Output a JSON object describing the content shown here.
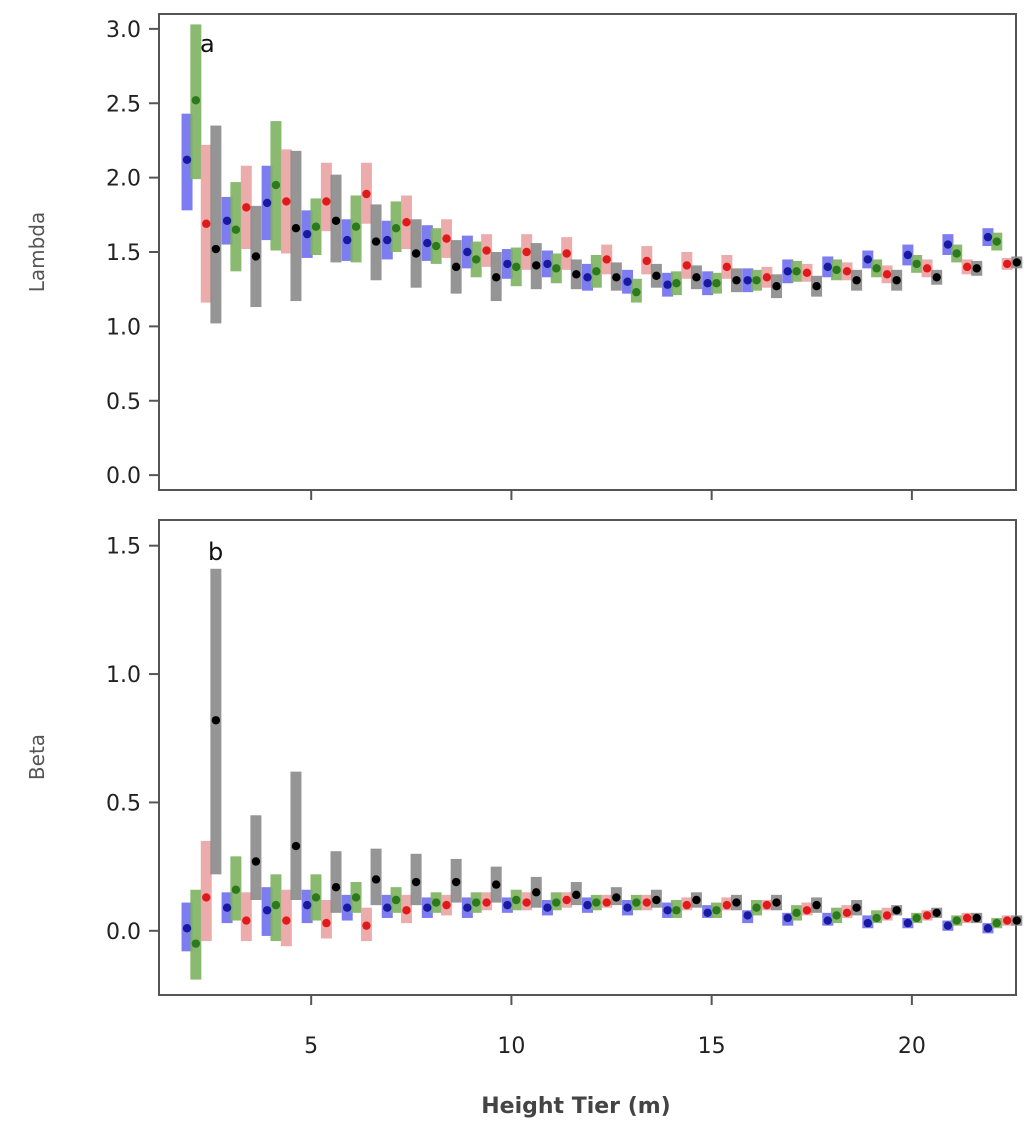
{
  "chart_data": {
    "type": "scatter",
    "xlabel": "Height Tier (m)",
    "x_ticks": [
      5,
      10,
      15,
      20
    ],
    "xlim": [
      1.2,
      22.6
    ],
    "series_colors": {
      "blue": {
        "bar": "#6f6ff0",
        "dot": "#1a1aa0"
      },
      "green": {
        "bar": "#7cb35f",
        "dot": "#2d7a1c"
      },
      "red": {
        "bar": "#eba3a3",
        "dot": "#e01a1a"
      },
      "black": {
        "bar": "#8a8a8a",
        "dot": "#000000"
      }
    },
    "series_offsets": {
      "blue": -0.1,
      "green": 0.12,
      "red": 0.38,
      "black": 0.62
    },
    "panels": [
      {
        "letter": "a",
        "ylabel": "Lambda",
        "ylim": [
          -0.1,
          3.1
        ],
        "y_ticks": [
          "0.0",
          "0.5",
          "1.0",
          "1.5",
          "2.0",
          "2.5",
          "3.0"
        ],
        "tiers": [
          2,
          3,
          4,
          5,
          6,
          7,
          8,
          9,
          10,
          11,
          12,
          13,
          14,
          15,
          16,
          17,
          18,
          19,
          20,
          21,
          22
        ],
        "series": {
          "blue": {
            "mid": [
              2.12,
              1.71,
              1.83,
              1.62,
              1.58,
              1.58,
              1.56,
              1.5,
              1.42,
              1.42,
              1.33,
              1.3,
              1.28,
              1.29,
              1.31,
              1.37,
              1.4,
              1.45,
              1.48,
              1.55,
              1.6
            ],
            "lo": [
              1.78,
              1.55,
              1.58,
              1.46,
              1.44,
              1.45,
              1.44,
              1.39,
              1.32,
              1.33,
              1.24,
              1.22,
              1.2,
              1.21,
              1.23,
              1.29,
              1.33,
              1.39,
              1.41,
              1.48,
              1.54
            ],
            "hi": [
              2.43,
              1.87,
              2.08,
              1.78,
              1.72,
              1.71,
              1.68,
              1.61,
              1.52,
              1.51,
              1.42,
              1.38,
              1.36,
              1.37,
              1.39,
              1.45,
              1.47,
              1.51,
              1.55,
              1.62,
              1.66
            ]
          },
          "green": {
            "mid": [
              2.52,
              1.65,
              1.95,
              1.67,
              1.67,
              1.66,
              1.54,
              1.45,
              1.4,
              1.39,
              1.37,
              1.23,
              1.29,
              1.29,
              1.31,
              1.37,
              1.38,
              1.39,
              1.42,
              1.49,
              1.57
            ],
            "lo": [
              1.99,
              1.37,
              1.51,
              1.48,
              1.43,
              1.5,
              1.42,
              1.33,
              1.27,
              1.29,
              1.26,
              1.16,
              1.21,
              1.22,
              1.24,
              1.3,
              1.31,
              1.33,
              1.36,
              1.43,
              1.51
            ],
            "hi": [
              3.03,
              1.97,
              2.38,
              1.86,
              1.88,
              1.84,
              1.66,
              1.57,
              1.53,
              1.49,
              1.48,
              1.32,
              1.37,
              1.36,
              1.38,
              1.44,
              1.45,
              1.45,
              1.48,
              1.55,
              1.63
            ]
          },
          "red": {
            "mid": [
              1.69,
              1.8,
              1.84,
              1.84,
              1.89,
              1.7,
              1.59,
              1.51,
              1.5,
              1.49,
              1.45,
              1.44,
              1.41,
              1.4,
              1.33,
              1.36,
              1.37,
              1.35,
              1.39,
              1.4,
              1.42
            ],
            "lo": [
              1.16,
              1.52,
              1.49,
              1.64,
              1.69,
              1.52,
              1.46,
              1.4,
              1.38,
              1.38,
              1.35,
              1.35,
              1.32,
              1.32,
              1.26,
              1.3,
              1.31,
              1.29,
              1.33,
              1.35,
              1.38
            ],
            "hi": [
              2.22,
              2.08,
              2.19,
              2.1,
              2.1,
              1.88,
              1.72,
              1.62,
              1.62,
              1.6,
              1.55,
              1.54,
              1.5,
              1.48,
              1.4,
              1.42,
              1.43,
              1.41,
              1.45,
              1.45,
              1.46
            ]
          },
          "black": {
            "mid": [
              1.52,
              1.47,
              1.66,
              1.71,
              1.57,
              1.49,
              1.4,
              1.33,
              1.41,
              1.35,
              1.33,
              1.34,
              1.33,
              1.31,
              1.27,
              1.27,
              1.31,
              1.31,
              1.33,
              1.39,
              1.43
            ],
            "lo": [
              1.02,
              1.13,
              1.17,
              1.43,
              1.31,
              1.26,
              1.22,
              1.17,
              1.25,
              1.25,
              1.24,
              1.26,
              1.25,
              1.23,
              1.19,
              1.2,
              1.24,
              1.24,
              1.28,
              1.34,
              1.39
            ],
            "hi": [
              2.35,
              1.81,
              2.18,
              2.02,
              1.82,
              1.72,
              1.58,
              1.5,
              1.56,
              1.45,
              1.43,
              1.42,
              1.41,
              1.39,
              1.35,
              1.34,
              1.38,
              1.38,
              1.38,
              1.44,
              1.47
            ]
          }
        }
      },
      {
        "letter": "b",
        "ylabel": "Beta",
        "ylim": [
          -0.25,
          1.6
        ],
        "y_ticks": [
          "0.0",
          "0.5",
          "1.0",
          "1.5"
        ],
        "tiers": [
          2,
          3,
          4,
          5,
          6,
          7,
          8,
          9,
          10,
          11,
          12,
          13,
          14,
          15,
          16,
          17,
          18,
          19,
          20,
          21,
          22
        ],
        "series": {
          "blue": {
            "mid": [
              0.01,
              0.09,
              0.08,
              0.1,
              0.09,
              0.09,
              0.09,
              0.09,
              0.1,
              0.09,
              0.1,
              0.09,
              0.08,
              0.07,
              0.06,
              0.05,
              0.04,
              0.03,
              0.03,
              0.02,
              0.01
            ],
            "lo": [
              -0.08,
              0.03,
              -0.02,
              0.03,
              0.04,
              0.05,
              0.05,
              0.05,
              0.07,
              0.06,
              0.07,
              0.06,
              0.05,
              0.05,
              0.03,
              0.02,
              0.02,
              0.01,
              0.01,
              0.0,
              -0.01
            ],
            "hi": [
              0.11,
              0.15,
              0.17,
              0.16,
              0.14,
              0.14,
              0.13,
              0.13,
              0.13,
              0.12,
              0.13,
              0.12,
              0.11,
              0.1,
              0.08,
              0.07,
              0.07,
              0.06,
              0.05,
              0.04,
              0.03
            ]
          },
          "green": {
            "mid": [
              -0.05,
              0.16,
              0.1,
              0.13,
              0.13,
              0.12,
              0.11,
              0.11,
              0.12,
              0.11,
              0.11,
              0.11,
              0.08,
              0.08,
              0.09,
              0.07,
              0.06,
              0.05,
              0.05,
              0.04,
              0.03
            ],
            "lo": [
              -0.19,
              0.04,
              -0.04,
              0.04,
              0.07,
              0.07,
              0.07,
              0.07,
              0.08,
              0.08,
              0.08,
              0.08,
              0.05,
              0.05,
              0.06,
              0.04,
              0.03,
              0.03,
              0.03,
              0.02,
              0.01
            ],
            "hi": [
              0.16,
              0.29,
              0.22,
              0.22,
              0.19,
              0.17,
              0.15,
              0.15,
              0.16,
              0.15,
              0.14,
              0.14,
              0.12,
              0.11,
              0.12,
              0.1,
              0.09,
              0.08,
              0.07,
              0.06,
              0.05
            ]
          },
          "red": {
            "mid": [
              0.13,
              0.04,
              0.04,
              0.03,
              0.02,
              0.08,
              0.1,
              0.11,
              0.11,
              0.12,
              0.11,
              0.11,
              0.1,
              0.1,
              0.1,
              0.08,
              0.07,
              0.06,
              0.06,
              0.05,
              0.04
            ],
            "lo": [
              -0.04,
              -0.04,
              -0.06,
              -0.03,
              -0.04,
              0.03,
              0.06,
              0.08,
              0.08,
              0.09,
              0.09,
              0.08,
              0.08,
              0.08,
              0.08,
              0.06,
              0.05,
              0.04,
              0.04,
              0.03,
              0.02
            ],
            "hi": [
              0.35,
              0.15,
              0.16,
              0.12,
              0.09,
              0.14,
              0.14,
              0.15,
              0.15,
              0.15,
              0.14,
              0.14,
              0.13,
              0.13,
              0.12,
              0.11,
              0.1,
              0.09,
              0.08,
              0.07,
              0.06
            ]
          },
          "black": {
            "mid": [
              0.82,
              0.27,
              0.33,
              0.17,
              0.2,
              0.19,
              0.19,
              0.18,
              0.15,
              0.14,
              0.13,
              0.12,
              0.12,
              0.11,
              0.11,
              0.1,
              0.09,
              0.08,
              0.07,
              0.05,
              0.04
            ],
            "lo": [
              0.22,
              0.12,
              0.12,
              0.07,
              0.1,
              0.1,
              0.11,
              0.11,
              0.09,
              0.1,
              0.1,
              0.09,
              0.09,
              0.08,
              0.08,
              0.07,
              0.06,
              0.06,
              0.05,
              0.03,
              0.02
            ],
            "hi": [
              1.41,
              0.45,
              0.62,
              0.31,
              0.32,
              0.3,
              0.28,
              0.25,
              0.21,
              0.19,
              0.17,
              0.16,
              0.15,
              0.14,
              0.14,
              0.13,
              0.12,
              0.1,
              0.09,
              0.07,
              0.06
            ]
          }
        }
      }
    ]
  }
}
